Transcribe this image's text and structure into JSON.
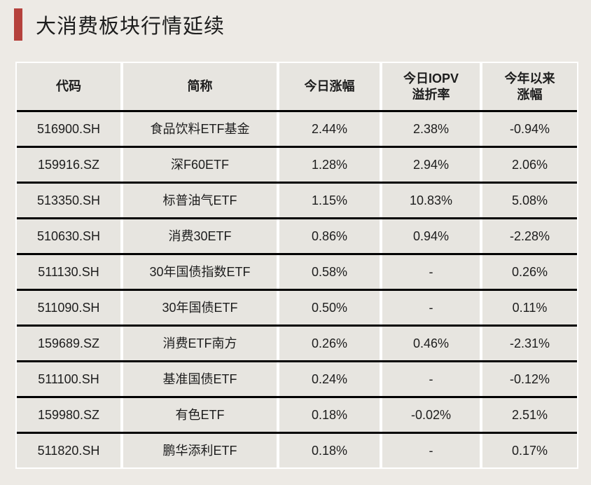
{
  "title": "大消费板块行情延续",
  "theme": {
    "accent_color": "#b5413c",
    "page_background": "#edeae5",
    "cell_background": "#e7e5e0",
    "gap_color": "#ffffff",
    "grid_line_color": "#000000",
    "text_color": "#1d1d1d"
  },
  "chart_data": {
    "type": "table",
    "title": "大消费板块行情延续",
    "columns": [
      {
        "key": "code",
        "lines": [
          "代码"
        ]
      },
      {
        "key": "name",
        "lines": [
          "简称"
        ]
      },
      {
        "key": "today_change",
        "lines": [
          "今日涨幅"
        ]
      },
      {
        "key": "iopv_premium",
        "lines": [
          "今日IOPV",
          "溢折率"
        ]
      },
      {
        "key": "ytd_change",
        "lines": [
          "今年以来",
          "涨幅"
        ]
      }
    ],
    "rows": [
      {
        "code": "516900.SH",
        "name": "食品饮料ETF基金",
        "today_change": "2.44%",
        "iopv_premium": "2.38%",
        "ytd_change": "-0.94%"
      },
      {
        "code": "159916.SZ",
        "name": "深F60ETF",
        "today_change": "1.28%",
        "iopv_premium": "2.94%",
        "ytd_change": "2.06%"
      },
      {
        "code": "513350.SH",
        "name": "标普油气ETF",
        "today_change": "1.15%",
        "iopv_premium": "10.83%",
        "ytd_change": "5.08%"
      },
      {
        "code": "510630.SH",
        "name": "消费30ETF",
        "today_change": "0.86%",
        "iopv_premium": "0.94%",
        "ytd_change": "-2.28%"
      },
      {
        "code": "511130.SH",
        "name": "30年国债指数ETF",
        "today_change": "0.58%",
        "iopv_premium": "-",
        "ytd_change": "0.26%"
      },
      {
        "code": "511090.SH",
        "name": "30年国债ETF",
        "today_change": "0.50%",
        "iopv_premium": "-",
        "ytd_change": "0.11%"
      },
      {
        "code": "159689.SZ",
        "name": "消费ETF南方",
        "today_change": "0.26%",
        "iopv_premium": "0.46%",
        "ytd_change": "-2.31%"
      },
      {
        "code": "511100.SH",
        "name": "基准国债ETF",
        "today_change": "0.24%",
        "iopv_premium": "-",
        "ytd_change": "-0.12%"
      },
      {
        "code": "159980.SZ",
        "name": "有色ETF",
        "today_change": "0.18%",
        "iopv_premium": "-0.02%",
        "ytd_change": "2.51%"
      },
      {
        "code": "511820.SH",
        "name": "鹏华添利ETF",
        "today_change": "0.18%",
        "iopv_premium": "-",
        "ytd_change": "0.17%"
      }
    ]
  }
}
